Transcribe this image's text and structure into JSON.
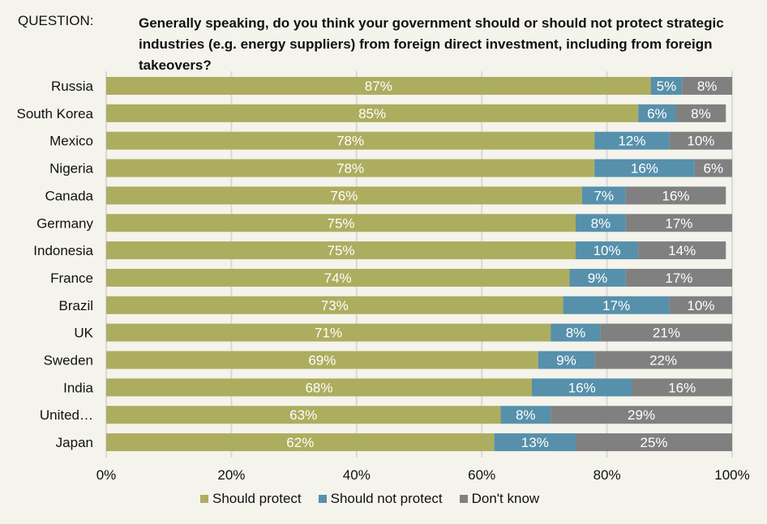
{
  "question": {
    "label": "QUESTION:",
    "text": "Generally speaking, do you think your government should or should not protect strategic industries (e.g. energy suppliers) from foreign direct investment, including from foreign takeovers?"
  },
  "chart_data": {
    "type": "bar",
    "orientation": "horizontal",
    "stacked": true,
    "title": "Generally speaking, do you think your government should or should not protect strategic industries (e.g. energy suppliers) from foreign direct investment, including from foreign takeovers?",
    "xlabel": "",
    "ylabel": "",
    "xlim": [
      0,
      100
    ],
    "x_ticks": [
      "0%",
      "20%",
      "40%",
      "60%",
      "80%",
      "100%"
    ],
    "x_tick_values": [
      0,
      20,
      40,
      60,
      80,
      100
    ],
    "grid": true,
    "legend_position": "bottom",
    "categories": [
      "Russia",
      "South Korea",
      "Mexico",
      "Nigeria",
      "Canada",
      "Germany",
      "Indonesia",
      "France",
      "Brazil",
      "UK",
      "Sweden",
      "India",
      "United…",
      "Japan"
    ],
    "series": [
      {
        "name": "Should protect",
        "color": "#adad5f",
        "values": [
          87,
          85,
          78,
          78,
          76,
          75,
          75,
          74,
          73,
          71,
          69,
          68,
          63,
          62
        ]
      },
      {
        "name": "Should not protect",
        "color": "#5690ab",
        "values": [
          5,
          6,
          12,
          16,
          7,
          8,
          10,
          9,
          17,
          8,
          9,
          16,
          8,
          13
        ]
      },
      {
        "name": "Don't know",
        "color": "#808080",
        "values": [
          8,
          8,
          10,
          6,
          16,
          17,
          14,
          17,
          10,
          21,
          22,
          16,
          29,
          25
        ]
      }
    ]
  }
}
